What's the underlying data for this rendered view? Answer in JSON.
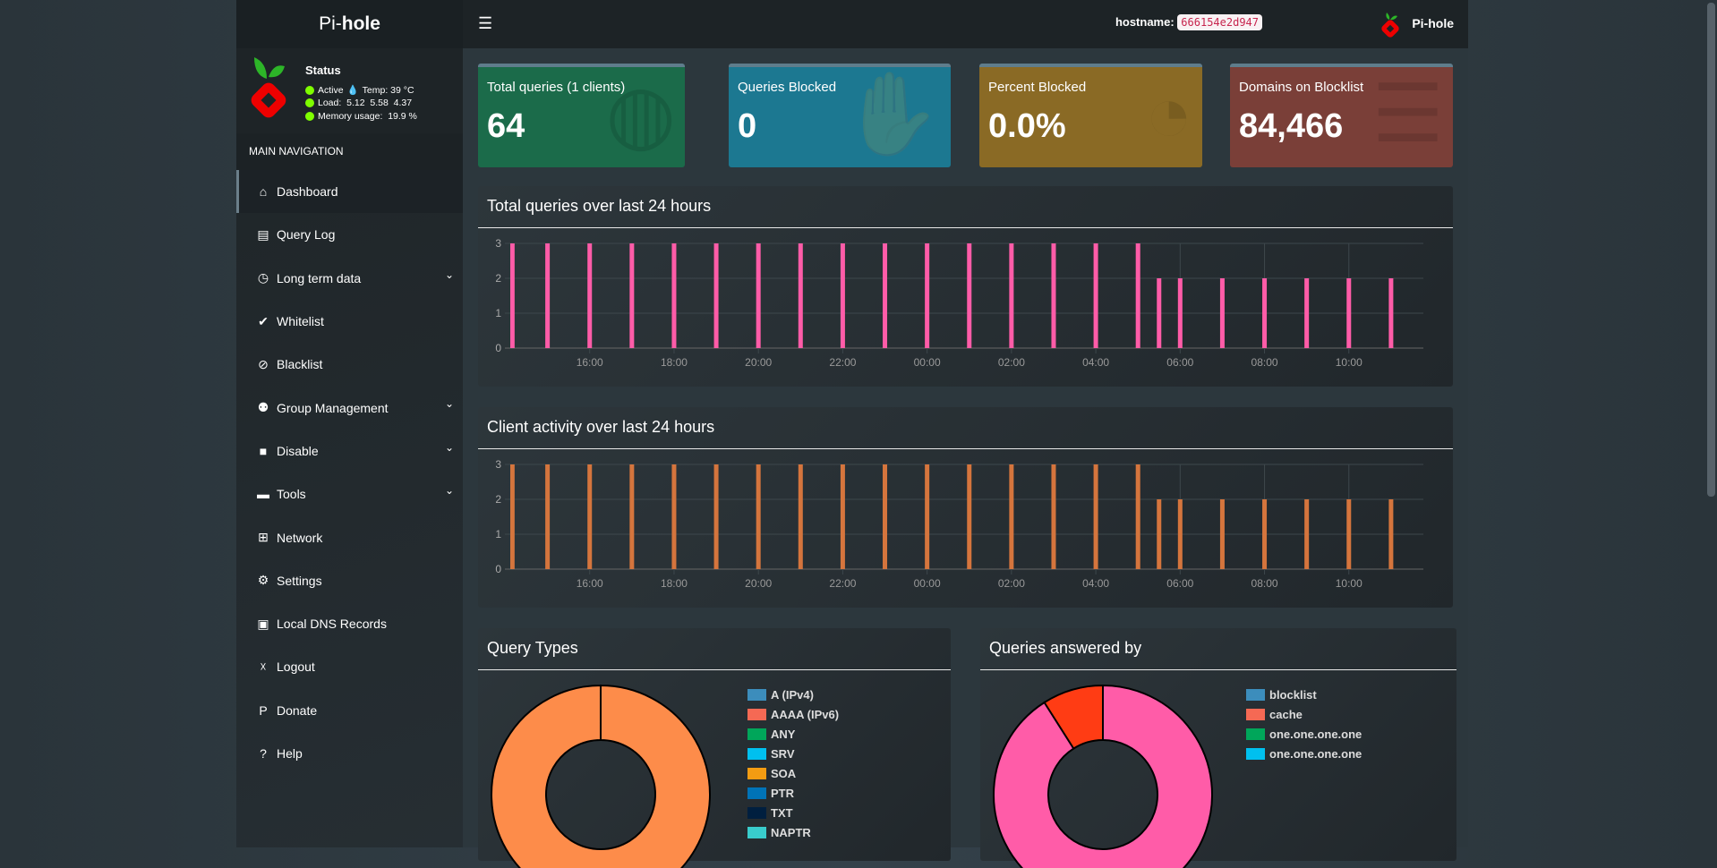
{
  "header": {
    "logo_prefix": "Pi-",
    "logo_bold": "hole",
    "menu_icon": "hamburger-icon",
    "hostname_label": "hostname:",
    "hostname": "666154e2d947",
    "user_name": "Pi-hole"
  },
  "status": {
    "title": "Status",
    "active": "Active",
    "temp": "Temp: 39 °C",
    "load": "Load:  5.12  5.58  4.37",
    "memory": "Memory usage:  19.9 %"
  },
  "sidebar": {
    "header": "MAIN NAVIGATION",
    "items": [
      {
        "label": "Dashboard",
        "icon": "home-icon",
        "glyph": "⌂",
        "active": true
      },
      {
        "label": "Query Log",
        "icon": "file-icon",
        "glyph": "▤"
      },
      {
        "label": "Long term data",
        "icon": "clock-icon",
        "glyph": "◷",
        "chevron": true
      },
      {
        "label": "Whitelist",
        "icon": "check-circle-icon",
        "glyph": "✔"
      },
      {
        "label": "Blacklist",
        "icon": "ban-icon",
        "glyph": "⊘"
      },
      {
        "label": "Group Management",
        "icon": "users-cog-icon",
        "glyph": "⚉",
        "chevron": true
      },
      {
        "label": "Disable",
        "icon": "stop-icon",
        "glyph": "■",
        "chevron": true
      },
      {
        "label": "Tools",
        "icon": "folder-icon",
        "glyph": "▬",
        "chevron": true
      },
      {
        "label": "Network",
        "icon": "network-icon",
        "glyph": "⊞"
      },
      {
        "label": "Settings",
        "icon": "cogs-icon",
        "glyph": "⚙"
      },
      {
        "label": "Local DNS Records",
        "icon": "address-book-icon",
        "glyph": "▣"
      },
      {
        "label": "Logout",
        "icon": "user-times-icon",
        "glyph": "☓"
      },
      {
        "label": "Donate",
        "icon": "paypal-icon",
        "glyph": "P"
      },
      {
        "label": "Help",
        "icon": "question-circle-icon",
        "glyph": "?"
      }
    ]
  },
  "cards": [
    {
      "label": "Total queries (1 clients)",
      "value": "64",
      "color": "#1b6b4a",
      "icon": "globe-icon"
    },
    {
      "label": "Queries Blocked",
      "value": "0",
      "color": "#1c7891",
      "icon": "hand-icon"
    },
    {
      "label": "Percent Blocked",
      "value": "0.0%",
      "color": "#8a6a25",
      "icon": "pie-chart-icon"
    },
    {
      "label": "Domains on Blocklist",
      "value": "84,466",
      "color": "#7a3f38",
      "icon": "list-icon"
    }
  ],
  "chart_data": [
    {
      "type": "bar",
      "title": "Total queries over last 24 hours",
      "color": "#ff5ca8",
      "x": [
        "14:10",
        "15:00",
        "16:00",
        "17:00",
        "18:00",
        "19:00",
        "20:00",
        "21:00",
        "22:00",
        "23:00",
        "00:00",
        "01:00",
        "02:00",
        "03:00",
        "04:00",
        "05:00",
        "05:30",
        "06:00",
        "07:00",
        "08:00",
        "09:00",
        "10:00",
        "11:00"
      ],
      "values": [
        3,
        3,
        3,
        3,
        3,
        3,
        3,
        3,
        3,
        3,
        3,
        3,
        3,
        3,
        3,
        3,
        2,
        2,
        2,
        2,
        2,
        2,
        2
      ],
      "xticks": [
        "16:00",
        "18:00",
        "20:00",
        "22:00",
        "00:00",
        "02:00",
        "04:00",
        "06:00",
        "08:00",
        "10:00"
      ],
      "yticks": [
        0,
        1,
        2,
        3
      ],
      "ylim": [
        0,
        3
      ],
      "xlim": [
        "14:07",
        "11:46"
      ],
      "grid": true
    },
    {
      "type": "bar",
      "title": "Client activity over last 24 hours",
      "color": "#d5753d",
      "x": [
        "14:10",
        "15:00",
        "16:00",
        "17:00",
        "18:00",
        "19:00",
        "20:00",
        "21:00",
        "22:00",
        "23:00",
        "00:00",
        "01:00",
        "02:00",
        "03:00",
        "04:00",
        "05:00",
        "05:30",
        "06:00",
        "07:00",
        "08:00",
        "09:00",
        "10:00",
        "11:00"
      ],
      "values": [
        3,
        3,
        3,
        3,
        3,
        3,
        3,
        3,
        3,
        3,
        3,
        3,
        3,
        3,
        3,
        3,
        2,
        2,
        2,
        2,
        2,
        2,
        2
      ],
      "xticks": [
        "16:00",
        "18:00",
        "20:00",
        "22:00",
        "00:00",
        "02:00",
        "04:00",
        "06:00",
        "08:00",
        "10:00"
      ],
      "yticks": [
        0,
        1,
        2,
        3
      ],
      "ylim": [
        0,
        3
      ],
      "xlim": [
        "14:07",
        "11:46"
      ],
      "grid": true
    },
    {
      "type": "pie",
      "title": "Query Types",
      "slices": [
        {
          "value": 100,
          "color": "#fd8c4a"
        }
      ],
      "legend": [
        {
          "label": "A (IPv4)",
          "color": "#3c8dbc"
        },
        {
          "label": "AAAA (IPv6)",
          "color": "#f56954"
        },
        {
          "label": "ANY",
          "color": "#00a65a"
        },
        {
          "label": "SRV",
          "color": "#00c0ef"
        },
        {
          "label": "SOA",
          "color": "#f39c12"
        },
        {
          "label": "PTR",
          "color": "#0073b7"
        },
        {
          "label": "TXT",
          "color": "#001f3f"
        },
        {
          "label": "NAPTR",
          "color": "#39cccc"
        }
      ]
    },
    {
      "type": "pie",
      "title": "Queries answered by",
      "slices": [
        {
          "value": 91,
          "color": "#ff5ca8"
        },
        {
          "value": 9,
          "color": "#ff3c14"
        }
      ],
      "legend": [
        {
          "label": "blocklist",
          "color": "#3c8dbc"
        },
        {
          "label": "cache",
          "color": "#f56954"
        },
        {
          "label": "one.one.one.one",
          "color": "#00a65a"
        },
        {
          "label": "one.one.one.one",
          "color": "#00c0ef"
        }
      ]
    }
  ]
}
